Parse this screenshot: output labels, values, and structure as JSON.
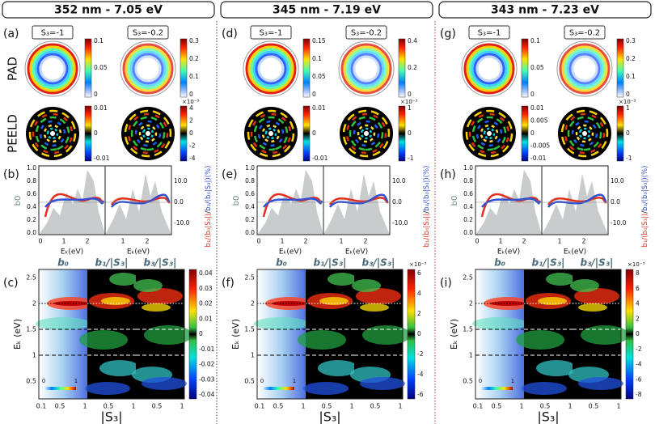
{
  "row_labels": [
    "PAD",
    "PEELD"
  ],
  "common": {
    "b_left_label": "b0",
    "b_left_ticks": [
      "1.0",
      "0.8",
      "0.6",
      "0.4",
      "0.2",
      "0.0"
    ],
    "b_right_ticks": [
      "10.0",
      "0.0",
      "-10.0"
    ],
    "b_right_label": [
      "b₁/(b₀|S₃|)",
      "/",
      "b₃/(b₀|S₃|)",
      "(%)"
    ],
    "b_xticks_left": [
      "0",
      "1",
      "2"
    ],
    "b_xticks_right": [
      "1",
      "2"
    ],
    "b_xlabel": "Eₖ(eV)",
    "heat_titles": [
      "b₀",
      "b₁/|S₃|",
      "b₃/|S₃|"
    ],
    "heat_yticks": [
      "2.5",
      "2",
      "1.5",
      "1",
      "0.5"
    ],
    "heat_ylabel": "Eₖ (eV)",
    "heat_xticks_first": [
      "0.1",
      "0.5",
      "1"
    ],
    "heat_xticks_other": [
      "0.5",
      "1"
    ],
    "heat_xlabel": "|S₃|",
    "inset_ticks": [
      "0",
      "1"
    ]
  },
  "columns": [
    {
      "header": "352 nm - 7.05 eV",
      "panels": [
        "(a)",
        "(b)",
        "(c)"
      ],
      "s3": [
        "S₃=-1",
        "S₃=-0.2"
      ],
      "pad_cbars": [
        {
          "ticks": [
            "0.1",
            "0.05",
            "0"
          ]
        },
        {
          "ticks": [
            "0.3",
            "0.2",
            "0.1",
            "0"
          ]
        }
      ],
      "peeld_cbars": [
        {
          "ticks": [
            "0.01",
            "0",
            "-0.01"
          ]
        },
        {
          "exponent": "×10⁻³",
          "ticks": [
            "4",
            "2",
            "0",
            "-2",
            "-4"
          ]
        }
      ],
      "heat_cbar": {
        "ticks": [
          "0.04",
          "0.03",
          "0.02",
          "0.01",
          "0",
          "-0.01",
          "-0.02",
          "-0.03",
          "-0.04"
        ]
      }
    },
    {
      "header": "345 nm - 7.19 eV",
      "panels": [
        "(d)",
        "(e)",
        "(f)"
      ],
      "s3": [
        "S₃=-1",
        "S₃=-0.2"
      ],
      "pad_cbars": [
        {
          "ticks": [
            "0.15",
            "0.1",
            "0.05",
            "0"
          ]
        },
        {
          "ticks": [
            "0.4",
            "0.2",
            "0"
          ]
        }
      ],
      "peeld_cbars": [
        {
          "ticks": [
            "0.01",
            "0",
            "-0.01"
          ]
        },
        {
          "exponent": "×10⁻³",
          "ticks": [
            "1",
            "0",
            "-1"
          ]
        }
      ],
      "heat_cbar": {
        "exponent": "×10⁻³",
        "ticks": [
          "6",
          "4",
          "2",
          "0",
          "-2",
          "-4",
          "-6"
        ]
      }
    },
    {
      "header": "343 nm - 7.23 eV",
      "panels": [
        "(g)",
        "(h)",
        "(i)"
      ],
      "s3": [
        "S₃=-1",
        "S₃=-0.2"
      ],
      "pad_cbars": [
        {
          "ticks": [
            "0.1",
            "0.05",
            "0"
          ]
        },
        {
          "ticks": [
            "0.3",
            "0.2",
            "0.1",
            "0"
          ]
        }
      ],
      "peeld_cbars": [
        {
          "ticks": [
            "0.01",
            "0.005",
            "0",
            "-0.005",
            "-0.01"
          ]
        },
        {
          "exponent": "×10⁻³",
          "ticks": [
            "1",
            "0",
            "-1"
          ]
        }
      ],
      "heat_cbar": {
        "exponent": "×10⁻³",
        "ticks": [
          "8",
          "6",
          "4",
          "2",
          "0",
          "-2",
          "-4",
          "-6",
          "-8"
        ]
      }
    }
  ]
}
